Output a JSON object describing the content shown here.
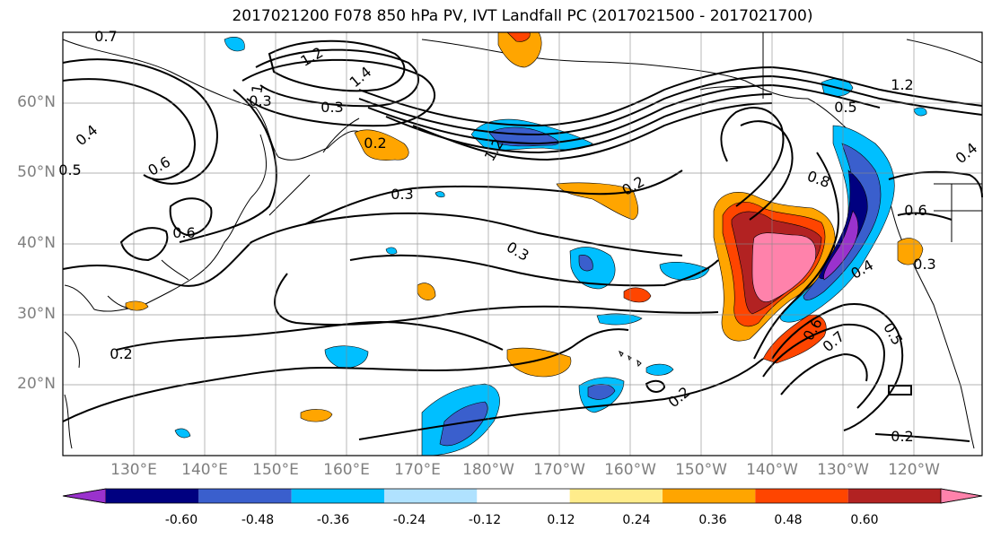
{
  "title": "2017021200 F078 850 hPa PV, IVT Landfall PC (2017021500 - 2017021700)",
  "latitude_labels": [
    "60°N",
    "50°N",
    "40°N",
    "30°N",
    "20°N"
  ],
  "longitude_labels": [
    "130°E",
    "140°E",
    "150°E",
    "160°E",
    "170°E",
    "180°W",
    "170°W",
    "160°W",
    "150°W",
    "140°W",
    "130°W",
    "120°W"
  ],
  "colorbar": {
    "colors": [
      "#9a32cd",
      "#000080",
      "#3a5fcd",
      "#00bfff",
      "#b0e2ff",
      "#ffffff",
      "#ffec8b",
      "#ffa500",
      "#ff4500",
      "#b22222",
      "#ff82ab"
    ],
    "tick_labels": [
      "-0.60",
      "-0.48",
      "-0.36",
      "-0.24",
      "-0.12",
      "0.12",
      "0.24",
      "0.36",
      "0.48",
      "0.60"
    ]
  },
  "contour_labels": [
    "0.7",
    "1.2",
    "1.4",
    "0.3",
    "0.3",
    "0.2",
    "0.4",
    "0.6",
    "0.6",
    "0.5",
    "0.3",
    "0.3",
    "0.2",
    "0.2",
    "0.8",
    "0.6",
    "0.4",
    "0.3",
    "0.5",
    "0.7",
    "0.6",
    "0.2",
    "0.2",
    "0.5",
    "1.2",
    "1.2",
    "0.4",
    "1"
  ]
}
